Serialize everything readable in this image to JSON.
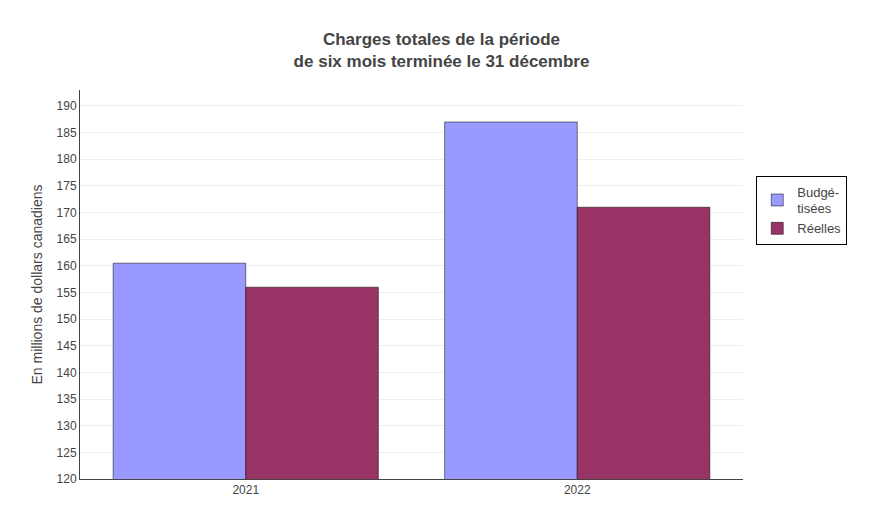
{
  "chart_data": {
    "type": "bar",
    "title": "Charges totales de la période\nde six mois terminée le 31 décembre",
    "categories": [
      "2021",
      "2022"
    ],
    "series": [
      {
        "name": "Budgé-\ntisées",
        "color": "#9999FF",
        "values": [
          160.5,
          187.0
        ]
      },
      {
        "name": "Réelles",
        "color": "#993366",
        "values": [
          156.0,
          171.0
        ]
      }
    ],
    "ylabel": "En millions de dollars canadiens",
    "ylim": [
      120,
      193
    ],
    "yticks": [
      120,
      125,
      130,
      135,
      140,
      145,
      150,
      155,
      160,
      165,
      170,
      175,
      180,
      185,
      190
    ],
    "grid": true,
    "legend": "right"
  }
}
